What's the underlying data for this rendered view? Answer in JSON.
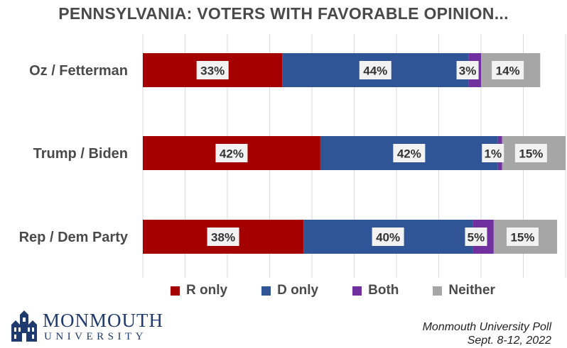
{
  "chart_data": {
    "type": "bar",
    "orientation": "horizontal",
    "stacked": true,
    "title": "PENNSYLVANIA:  VOTERS WITH FAVORABLE OPINION...",
    "categories": [
      "Oz / Fetterman",
      "Trump / Biden",
      "Rep / Dem Party"
    ],
    "series": [
      {
        "name": "R only",
        "values": [
          33,
          42,
          38
        ]
      },
      {
        "name": "D only",
        "values": [
          44,
          42,
          40
        ]
      },
      {
        "name": "Both",
        "values": [
          3,
          1,
          5
        ]
      },
      {
        "name": "Neither",
        "values": [
          14,
          15,
          15
        ]
      }
    ],
    "value_labels": [
      [
        "33%",
        "44%",
        "3%",
        "14%"
      ],
      [
        "42%",
        "42%",
        "1%",
        "15%"
      ],
      [
        "38%",
        "40%",
        "5%",
        "15%"
      ]
    ],
    "xlim": [
      0,
      100
    ],
    "grid": true,
    "legend_position": "bottom",
    "colors": {
      "R only": "#a50000",
      "D only": "#2f5597",
      "Both": "#7030a0",
      "Neither": "#a6a6a6"
    }
  },
  "logo": {
    "name": "MONMOUTH",
    "sub": "UNIVERSITY"
  },
  "source": {
    "line1": "Monmouth University Poll",
    "line2": "Sept. 8-12, 2022"
  }
}
